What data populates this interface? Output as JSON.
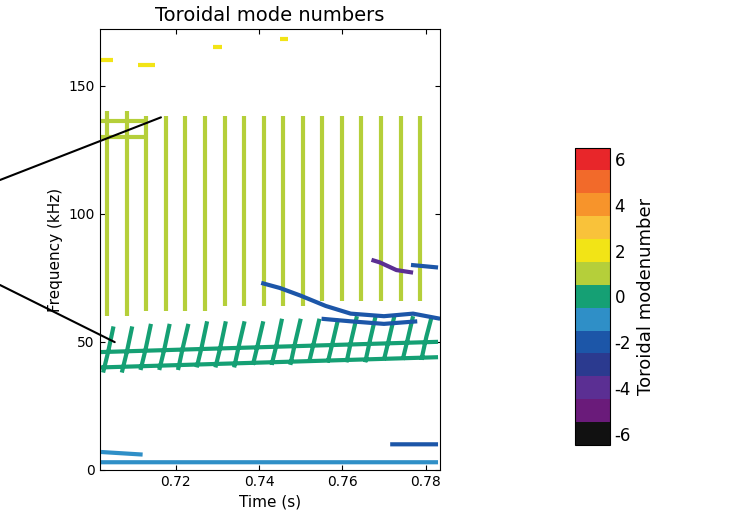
{
  "chart_data": {
    "type": "line",
    "title": "Toroidal mode numbers",
    "x_label": "Time (s)",
    "y_label": "Frequency (kHz)",
    "xlim": [
      0.7017,
      0.7834
    ],
    "ylim": [
      0,
      172
    ],
    "xticks": [
      0.72,
      0.74,
      0.76,
      0.78
    ],
    "yticks": [
      0,
      50,
      100,
      150
    ],
    "grid": false,
    "colorbar": {
      "label": "Toroidal modenumber",
      "lim": [
        -6.5,
        6.5
      ],
      "ticks": [
        -6,
        -4,
        -2,
        0,
        2,
        4,
        6
      ],
      "colors": [
        "#111111",
        "#6a1b7a",
        "#5b2f93",
        "#2b3a8f",
        "#1c56a8",
        "#2f8fc7",
        "#15a074",
        "#b5cf3a",
        "#f2e416",
        "#f9c23a",
        "#f7942b",
        "#f26a2a",
        "#e8262a"
      ]
    },
    "series": [
      {
        "mode": 1,
        "x": [
          0.7035,
          0.7035,
          null,
          0.7082,
          0.7082,
          null,
          0.7129,
          0.7129,
          null,
          0.7176,
          0.7176,
          null,
          0.7223,
          0.7223,
          null,
          0.727,
          0.727,
          null,
          0.7317,
          0.7317,
          null,
          0.7364,
          0.7364,
          null,
          0.7411,
          0.7411,
          null,
          0.7458,
          0.7458,
          null,
          0.7505,
          0.7505,
          null,
          0.7552,
          0.7552,
          null,
          0.7599,
          0.7599,
          null,
          0.7646,
          0.7646,
          null,
          0.7693,
          0.7693,
          null,
          0.774,
          0.774,
          null,
          0.7787,
          0.7787,
          null,
          0.702,
          0.713,
          null,
          0.702,
          0.713
        ],
        "values": [
          60,
          140,
          null,
          60,
          140,
          null,
          62,
          138,
          null,
          62,
          138,
          null,
          62,
          138,
          null,
          62,
          138,
          null,
          64,
          138,
          null,
          64,
          138,
          null,
          64,
          138,
          null,
          64,
          138,
          null,
          64,
          138,
          null,
          66,
          138,
          null,
          66,
          138,
          null,
          66,
          138,
          null,
          66,
          138,
          null,
          66,
          138,
          null,
          66,
          138,
          null,
          130,
          130,
          null,
          136,
          136
        ]
      },
      {
        "mode": 2,
        "x": [
          0.702,
          0.705,
          null,
          0.711,
          0.715,
          null,
          0.729,
          0.731,
          null,
          0.745,
          0.747
        ],
        "values": [
          160,
          160,
          null,
          158,
          158,
          null,
          165,
          165,
          null,
          168,
          168
        ]
      },
      {
        "mode": 0,
        "x": [
          0.7025,
          0.7037,
          0.705,
          null,
          0.707,
          0.7082,
          0.7095,
          null,
          0.7115,
          0.7127,
          0.714,
          null,
          0.716,
          0.7172,
          0.7185,
          null,
          0.7205,
          0.7217,
          0.723,
          null,
          0.725,
          0.7262,
          0.7275,
          null,
          0.7295,
          0.7307,
          0.732,
          null,
          0.734,
          0.7352,
          0.7365,
          null,
          0.7385,
          0.7397,
          0.741,
          null,
          0.743,
          0.7442,
          0.7455,
          null,
          0.7475,
          0.7487,
          0.75,
          null,
          0.752,
          0.7532,
          0.7545,
          null,
          0.7565,
          0.7577,
          0.759,
          null,
          0.761,
          0.7622,
          0.7635,
          null,
          0.7655,
          0.7667,
          0.768,
          null,
          0.77,
          0.7712,
          0.7725,
          null,
          0.7745,
          0.7757,
          0.777,
          null,
          0.779,
          0.7802,
          0.7815,
          null,
          0.702,
          0.783,
          null,
          0.702,
          0.783
        ],
        "values": [
          38,
          46,
          56,
          null,
          38,
          46,
          56,
          null,
          39,
          47,
          57,
          null,
          39,
          47,
          57,
          null,
          39,
          48,
          57,
          null,
          40,
          48,
          58,
          null,
          40,
          48,
          58,
          null,
          40,
          49,
          58,
          null,
          41,
          49,
          58,
          null,
          41,
          49,
          59,
          null,
          41,
          50,
          59,
          null,
          42,
          50,
          59,
          null,
          42,
          50,
          59,
          null,
          42,
          51,
          60,
          null,
          42,
          51,
          60,
          null,
          43,
          51,
          60,
          null,
          43,
          51,
          60,
          null,
          43,
          52,
          60,
          null,
          40,
          44,
          null,
          46,
          50
        ]
      },
      {
        "mode": -2,
        "x": [
          0.7405,
          0.745,
          0.75,
          0.756,
          0.762,
          0.77,
          0.777,
          0.7835,
          null,
          0.755,
          0.762,
          0.77,
          0.778,
          null,
          0.7765,
          0.783,
          null,
          0.7715,
          0.783
        ],
        "values": [
          73,
          71,
          68,
          64,
          61,
          60,
          61,
          59,
          null,
          59,
          58,
          57,
          58,
          null,
          80,
          79,
          null,
          10,
          10
        ]
      },
      {
        "mode": -4,
        "x": [
          0.767,
          0.769,
          0.773,
          0.777
        ],
        "values": [
          82,
          81,
          78,
          77
        ]
      },
      {
        "mode": -1,
        "x": [
          0.702,
          0.783,
          null,
          0.702,
          0.712
        ],
        "values": [
          3,
          3,
          null,
          7,
          6
        ]
      }
    ]
  }
}
